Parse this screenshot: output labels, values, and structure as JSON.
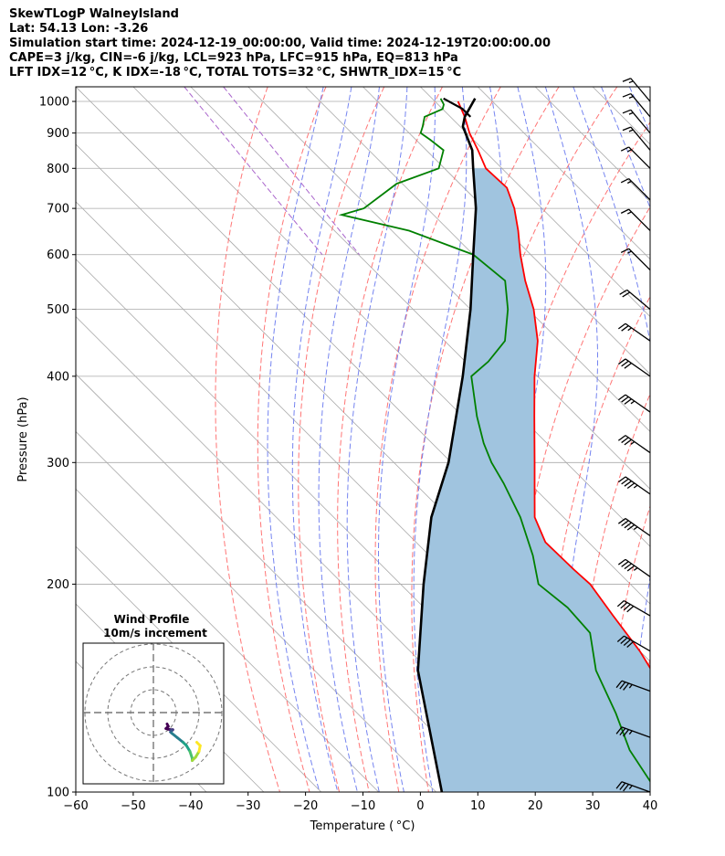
{
  "header": {
    "line1": "SkewTLogP WalneyIsland",
    "line2": "Lat: 54.13   Lon: -3.26",
    "line3": "Simulation start time: 2024-12-19_00:00:00, Valid time: 2024-12-19T20:00:00.00",
    "line4": "CAPE=3 j/kg, CIN=-6 j/kg, LCL=923 hPa, LFC=915 hPa, EQ=813 hPa",
    "line5": "LFT IDX=12 °C, K IDX=-18 °C, TOTAL TOTS=32 °C, SHWTR_IDX=15 °C"
  },
  "chart_data": {
    "type": "line",
    "xlabel": "Temperature ($^\\circ$C)",
    "xlabel_display": "Temperature ( °C)",
    "ylabel": "Pressure (hPa)",
    "xlim": [
      -60,
      40
    ],
    "ylim": [
      1050,
      100
    ],
    "yscale": "log",
    "skew": "45deg",
    "x_ticks": [
      -60,
      -50,
      -40,
      -30,
      -20,
      -10,
      0,
      10,
      20,
      30,
      40
    ],
    "x_tick_labels": [
      "−60",
      "−50",
      "−40",
      "−30",
      "−20",
      "−10",
      "0",
      "10",
      "20",
      "30",
      "40"
    ],
    "y_ticks": [
      1000,
      900,
      800,
      700,
      600,
      500,
      400,
      300,
      200,
      100
    ],
    "y_tick_labels": [
      "1000",
      "900",
      "800",
      "700",
      "600",
      "500",
      "400",
      "300",
      "200",
      "100"
    ],
    "grid": true,
    "colors": {
      "temperature": "#ff0000",
      "dewpoint": "#008000",
      "parcel": "#000000",
      "cape_fill": "#a0c4df",
      "dry_adiabat": "#ff6666",
      "moist_adiabat": "#6677ee",
      "mixing_ratio": "#aa66cc",
      "isotherm": "#aaaaaa"
    },
    "series": [
      {
        "key": "temperature",
        "points": [
          [
            1000,
            4.0
          ],
          [
            950,
            2.5
          ],
          [
            900,
            0.5
          ],
          [
            850,
            -1.0
          ],
          [
            800,
            -2.8
          ],
          [
            750,
            -2.5
          ],
          [
            700,
            -4.8
          ],
          [
            650,
            -8.0
          ],
          [
            600,
            -11.8
          ],
          [
            550,
            -15.5
          ],
          [
            500,
            -19.0
          ],
          [
            450,
            -23.8
          ],
          [
            400,
            -30.5
          ],
          [
            350,
            -37.5
          ],
          [
            300,
            -45.5
          ],
          [
            270,
            -51.0
          ],
          [
            250,
            -55.0
          ],
          [
            230,
            -57.5
          ],
          [
            210,
            -57.3
          ],
          [
            200,
            -57.0
          ],
          [
            180,
            -58.5
          ],
          [
            160,
            -60.0
          ],
          [
            150,
            -61.3
          ],
          [
            140,
            -62.3
          ],
          [
            130,
            -64.8
          ],
          [
            120,
            -66.5
          ],
          [
            110,
            -68.3
          ],
          [
            100,
            -69.0
          ]
        ]
      },
      {
        "key": "dewpoint",
        "points": [
          [
            1010,
            1.5
          ],
          [
            990,
            1.0
          ],
          [
            975,
            0.0
          ],
          [
            950,
            -4.5
          ],
          [
            920,
            -6.5
          ],
          [
            900,
            -8.0
          ],
          [
            880,
            -7.5
          ],
          [
            850,
            -7.0
          ],
          [
            800,
            -11.0
          ],
          [
            760,
            -21.0
          ],
          [
            700,
            -31.0
          ],
          [
            685,
            -36.0
          ],
          [
            650,
            -27.0
          ],
          [
            600,
            -20.0
          ],
          [
            550,
            -19.0
          ],
          [
            500,
            -23.5
          ],
          [
            450,
            -29.5
          ],
          [
            420,
            -36.0
          ],
          [
            400,
            -41.5
          ],
          [
            350,
            -47.5
          ],
          [
            320,
            -51.0
          ],
          [
            300,
            -53.0
          ],
          [
            280,
            -54.5
          ],
          [
            250,
            -57.5
          ],
          [
            220,
            -62.0
          ],
          [
            200,
            -66.0
          ],
          [
            185,
            -65.0
          ],
          [
            170,
            -65.5
          ],
          [
            150,
            -71.0
          ],
          [
            130,
            -75.0
          ],
          [
            115,
            -79.0
          ],
          [
            100,
            -81.5
          ]
        ]
      },
      {
        "key": "parcel",
        "points": [
          [
            1010,
            7.5
          ],
          [
            950,
            2.5
          ],
          [
            920,
            0.5
          ],
          [
            850,
            -2.0
          ],
          [
            800,
            -5.0
          ],
          [
            700,
            -11.5
          ],
          [
            600,
            -20.0
          ],
          [
            500,
            -30.0
          ],
          [
            400,
            -43.0
          ],
          [
            300,
            -60.5
          ],
          [
            250,
            -73.0
          ],
          [
            200,
            -86.0
          ],
          [
            150,
            -102.0
          ],
          [
            100,
            -119.0
          ]
        ]
      },
      {
        "key": "parcel_base",
        "points": [
          [
            1010,
            2.0
          ],
          [
            975,
            3.5
          ],
          [
            950,
            3.5
          ]
        ]
      }
    ],
    "wind_barbs": [
      {
        "p": 100,
        "dir": 290,
        "spd": 35
      },
      {
        "p": 120,
        "dir": 290,
        "spd": 35
      },
      {
        "p": 140,
        "dir": 290,
        "spd": 35
      },
      {
        "p": 160,
        "dir": 300,
        "spd": 40
      },
      {
        "p": 180,
        "dir": 300,
        "spd": 40
      },
      {
        "p": 205,
        "dir": 305,
        "spd": 45
      },
      {
        "p": 235,
        "dir": 305,
        "spd": 45
      },
      {
        "p": 270,
        "dir": 305,
        "spd": 45
      },
      {
        "p": 310,
        "dir": 305,
        "spd": 35
      },
      {
        "p": 355,
        "dir": 305,
        "spd": 35
      },
      {
        "p": 400,
        "dir": 305,
        "spd": 30
      },
      {
        "p": 450,
        "dir": 305,
        "spd": 25
      },
      {
        "p": 500,
        "dir": 310,
        "spd": 20
      },
      {
        "p": 570,
        "dir": 315,
        "spd": 15
      },
      {
        "p": 650,
        "dir": 315,
        "spd": 15
      },
      {
        "p": 720,
        "dir": 315,
        "spd": 15
      },
      {
        "p": 800,
        "dir": 315,
        "spd": 15
      },
      {
        "p": 850,
        "dir": 320,
        "spd": 15
      },
      {
        "p": 900,
        "dir": 320,
        "spd": 15
      },
      {
        "p": 950,
        "dir": 320,
        "spd": 15
      },
      {
        "p": 1000,
        "dir": 320,
        "spd": 15
      }
    ],
    "inset": {
      "title": "Wind Profile",
      "subtitle": "10m/s increment",
      "ring_step_ms": 10,
      "rings": 3,
      "hodograph_ms": [
        [
          6,
          -5
        ],
        [
          6.5,
          -6
        ],
        [
          5.5,
          -7
        ],
        [
          7.5,
          -7.5
        ],
        [
          8.5,
          -7.5
        ],
        [
          8,
          -8
        ],
        [
          7.5,
          -8.5
        ],
        [
          8,
          -9
        ],
        [
          10.5,
          -11
        ],
        [
          13,
          -13
        ],
        [
          14.5,
          -14.5
        ],
        [
          16,
          -17
        ],
        [
          17,
          -20
        ],
        [
          17,
          -21
        ],
        [
          18.5,
          -19.5
        ],
        [
          20,
          -17
        ],
        [
          20.5,
          -14.5
        ],
        [
          19,
          -13
        ]
      ]
    }
  }
}
